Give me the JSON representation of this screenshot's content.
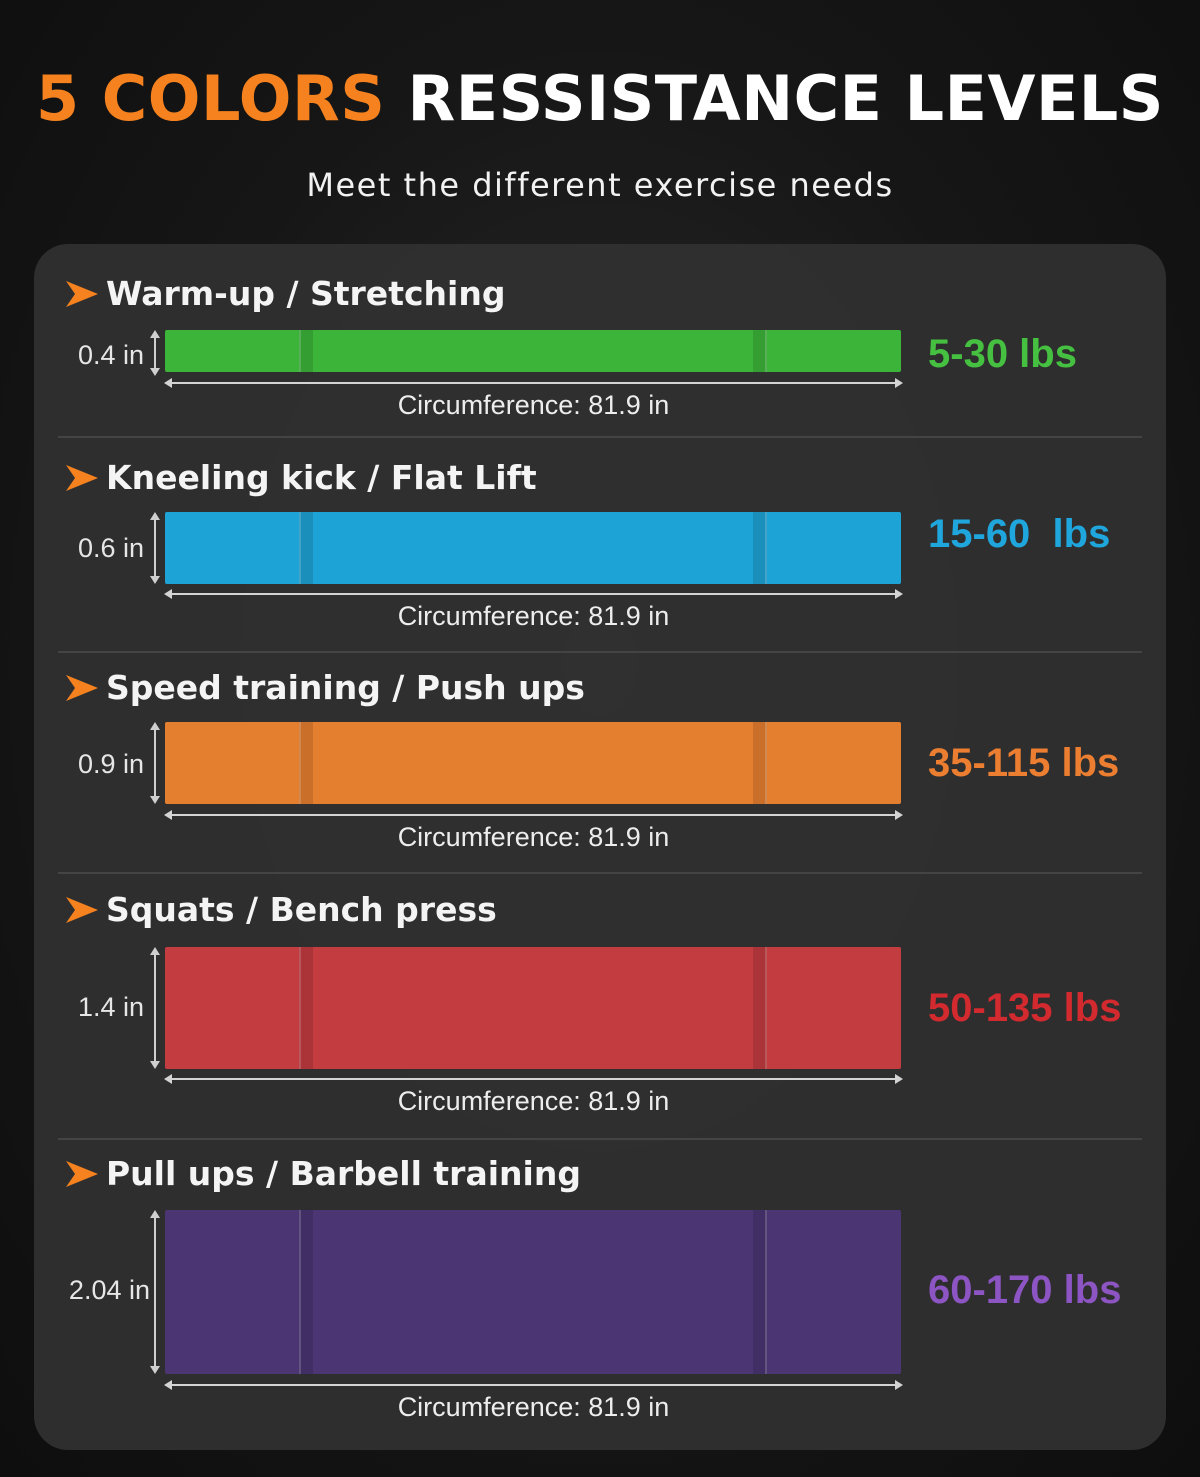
{
  "header": {
    "title_accent": "5 COLORS",
    "title_rest": "RESSISTANCE LEVELS",
    "subtitle": "Meet the different exercise needs",
    "accent_color": "#f5821f"
  },
  "bands": [
    {
      "use": "Warm-up / Stretching",
      "thickness": "0.4 in",
      "circumference": "Circumference: 81.9 in",
      "resistance": "5-30 lbs",
      "color": "#3cb43a",
      "label_color": "#45c040"
    },
    {
      "use": "Kneeling kick / Flat Lift",
      "thickness": "0.6 in",
      "circumference": "Circumference: 81.9 in",
      "resistance": "15-60  lbs",
      "color": "#1ea3d6",
      "label_color": "#1fa6dc"
    },
    {
      "use": "Speed training / Push ups",
      "thickness": "0.9 in",
      "circumference": "Circumference: 81.9 in",
      "resistance": "35-115 lbs",
      "color": "#e57f30",
      "label_color": "#eb7e30"
    },
    {
      "use": "Squats / Bench press",
      "thickness": "1.4 in",
      "circumference": "Circumference: 81.9 in",
      "resistance": "50-135 lbs",
      "color": "#c23c40",
      "label_color": "#d22a2e"
    },
    {
      "use": "Pull ups / Barbell training",
      "thickness": "2.04 in",
      "circumference": "Circumference: 81.9 in",
      "resistance": "60-170 lbs",
      "color": "#4b3572",
      "label_color": "#8d55c4"
    }
  ],
  "icons": {
    "bullet": "orange-arrow-icon"
  }
}
